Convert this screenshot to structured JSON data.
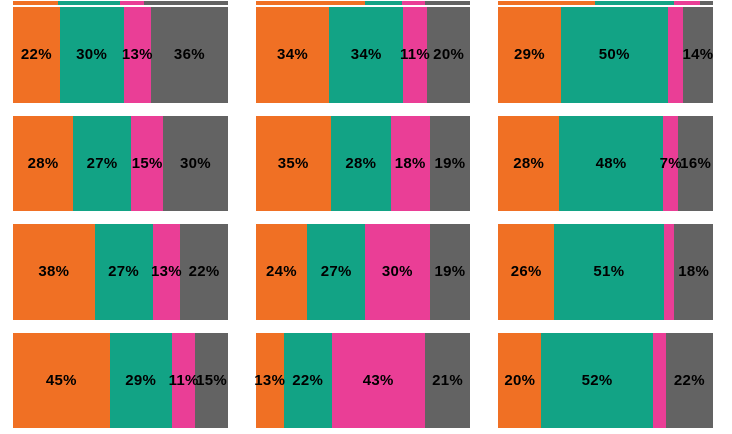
{
  "page": {
    "background": "#FFFFFF"
  },
  "chart_data": {
    "type": "bar",
    "subtype": "horizontal-100pct-stacked-small-multiples",
    "grid": {
      "rows": 4,
      "cols": 3
    },
    "title": "",
    "legend": null,
    "axes": null,
    "segments": [
      "orange",
      "teal",
      "pink",
      "gray"
    ],
    "colors": {
      "orange": "#F07024",
      "teal": "#12A385",
      "pink": "#EA3E96",
      "gray": "#636363"
    },
    "label_color": "#000000",
    "bars": [
      {
        "row": 1,
        "col": 1,
        "values": [
          22,
          30,
          13,
          36
        ],
        "labels": [
          "22%",
          "30%",
          "13%",
          "36%"
        ]
      },
      {
        "row": 1,
        "col": 2,
        "values": [
          34,
          34,
          11,
          20
        ],
        "labels": [
          "34%",
          "34%",
          "11%",
          "20%"
        ]
      },
      {
        "row": 1,
        "col": 3,
        "values": [
          29,
          50,
          7,
          14
        ],
        "labels": [
          "29%",
          "50%",
          null,
          "14%"
        ]
      },
      {
        "row": 2,
        "col": 1,
        "values": [
          28,
          27,
          15,
          30
        ],
        "labels": [
          "28%",
          "27%",
          "15%",
          "30%"
        ]
      },
      {
        "row": 2,
        "col": 2,
        "values": [
          35,
          28,
          18,
          19
        ],
        "labels": [
          "35%",
          "28%",
          "18%",
          "19%"
        ]
      },
      {
        "row": 2,
        "col": 3,
        "values": [
          28,
          48,
          7,
          16
        ],
        "labels": [
          "28%",
          "48%",
          "7%",
          "16%"
        ]
      },
      {
        "row": 3,
        "col": 1,
        "values": [
          38,
          27,
          13,
          22
        ],
        "labels": [
          "38%",
          "27%",
          "13%",
          "22%"
        ]
      },
      {
        "row": 3,
        "col": 2,
        "values": [
          24,
          27,
          30,
          19
        ],
        "labels": [
          "24%",
          "27%",
          "30%",
          "19%"
        ]
      },
      {
        "row": 3,
        "col": 3,
        "values": [
          26,
          51,
          5,
          18
        ],
        "labels": [
          "26%",
          "51%",
          null,
          "18%"
        ]
      },
      {
        "row": 4,
        "col": 1,
        "values": [
          45,
          29,
          11,
          15
        ],
        "labels": [
          "45%",
          "29%",
          "11%",
          "15%"
        ]
      },
      {
        "row": 4,
        "col": 2,
        "values": [
          13,
          22,
          43,
          21
        ],
        "labels": [
          "13%",
          "22%",
          "43%",
          "21%"
        ]
      },
      {
        "row": 4,
        "col": 3,
        "values": [
          20,
          52,
          6,
          22
        ],
        "labels": [
          "20%",
          "52%",
          null,
          "22%"
        ]
      }
    ],
    "top_cropped_bars": [
      {
        "col": 1,
        "values": [
          21,
          29,
          11,
          39
        ]
      },
      {
        "col": 2,
        "values": [
          51,
          17,
          11,
          21
        ]
      },
      {
        "col": 3,
        "values": [
          45,
          37,
          12,
          6
        ]
      }
    ]
  }
}
